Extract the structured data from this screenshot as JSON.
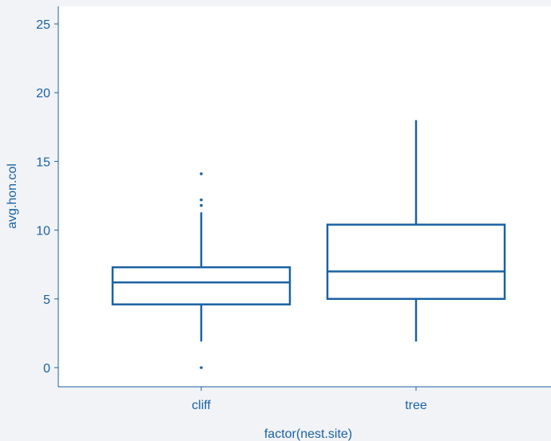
{
  "chart_data": {
    "type": "boxplot",
    "xlabel": "factor(nest.site)",
    "ylabel": "avg.hon.col",
    "categories": [
      "cliff",
      "tree"
    ],
    "ylim": [
      -1.5,
      26.2
    ],
    "yticks": [
      0,
      5,
      10,
      15,
      20,
      25
    ],
    "grid": false,
    "series": [
      {
        "category": "cliff",
        "min": 1.9,
        "q1": 4.6,
        "median": 6.2,
        "q3": 7.3,
        "max": 11.3,
        "outliers": [
          0,
          11.8,
          12.2,
          14.1
        ]
      },
      {
        "category": "tree",
        "min": 1.9,
        "q1": 5.0,
        "median": 7.0,
        "q3": 10.4,
        "max": 18.0,
        "outliers": []
      }
    ]
  },
  "colors": {
    "background": "#f1f3f6",
    "panel": "#ffffff",
    "accent": "#1a62a3",
    "axis_text": "#1a62a3"
  }
}
